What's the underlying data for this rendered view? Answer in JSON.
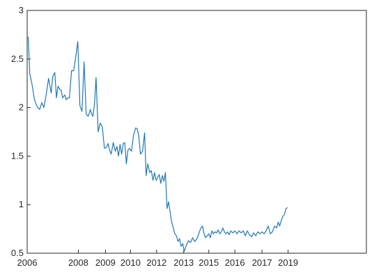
{
  "chart_data": {
    "type": "line",
    "title": "",
    "xlabel": "",
    "ylabel": "",
    "xlim": [
      2006,
      2019
    ],
    "ylim": [
      0.5,
      3
    ],
    "grid": false,
    "legend": "none",
    "line_color": "#1f77b4",
    "x_ticks": [
      {
        "value": 2006.0,
        "label": "2006"
      },
      {
        "value": 2007.96,
        "label": "2008"
      },
      {
        "value": 2009.0,
        "label": "2009"
      },
      {
        "value": 2009.96,
        "label": "2010"
      },
      {
        "value": 2010.96,
        "label": "2012"
      },
      {
        "value": 2012.0,
        "label": "2013"
      },
      {
        "value": 2012.96,
        "label": "2015"
      },
      {
        "value": 2013.96,
        "label": "2016"
      },
      {
        "value": 2015.0,
        "label": "2017"
      },
      {
        "value": 2016.0,
        "label": "2019"
      }
    ],
    "y_ticks": [
      {
        "value": 0.5,
        "label": "0.5"
      },
      {
        "value": 1,
        "label": "1"
      },
      {
        "value": 1.5,
        "label": "1.5"
      },
      {
        "value": 2,
        "label": "2"
      },
      {
        "value": 2.5,
        "label": "2.5"
      },
      {
        "value": 3,
        "label": "3"
      }
    ],
    "series": [
      {
        "x": [
          2006.04,
          2006.1,
          2006.18,
          2006.28,
          2006.38,
          2006.48,
          2006.56,
          2006.64,
          2006.72,
          2006.82,
          2006.92,
          2006.98,
          2007.06,
          2007.12,
          2007.18,
          2007.24,
          2007.3,
          2007.36,
          2007.44,
          2007.5,
          2007.56,
          2007.62,
          2007.7,
          2007.78,
          2007.86,
          2007.94,
          2008.02,
          2008.1,
          2008.18,
          2008.26,
          2008.34,
          2008.42,
          2008.48,
          2008.52,
          2008.58,
          2008.64,
          2008.72,
          2008.8,
          2008.88,
          2008.96,
          2009.04,
          2009.1,
          2009.16,
          2009.22,
          2009.3,
          2009.38,
          2009.44,
          2009.5,
          2009.56,
          2009.62,
          2009.68,
          2009.74,
          2009.8,
          2009.86,
          2009.92,
          2010.0,
          2010.08,
          2010.16,
          2010.22,
          2010.28,
          2010.34,
          2010.42,
          2010.5,
          2010.56,
          2010.62,
          2010.7,
          2010.76,
          2010.82,
          2010.88,
          2010.94,
          2011.0,
          2011.06,
          2011.12,
          2011.18,
          2011.24,
          2011.3,
          2011.36,
          2011.42,
          2011.48,
          2011.54,
          2011.6,
          2011.66,
          2011.72,
          2011.78,
          2011.84,
          2011.9,
          2011.96,
          2012.02,
          2012.1,
          2012.18,
          2012.26,
          2012.34,
          2012.42,
          2012.48,
          2012.54,
          2012.6,
          2012.66,
          2012.72,
          2012.78,
          2012.84,
          2012.9,
          2012.96,
          2013.02,
          2013.08,
          2013.14,
          2013.2,
          2013.26,
          2013.32,
          2013.38,
          2013.44,
          2013.5,
          2013.56,
          2013.62,
          2013.68,
          2013.74,
          2013.8,
          2013.88,
          2013.96,
          2014.04,
          2014.12,
          2014.2,
          2014.28,
          2014.36,
          2014.44,
          2014.52,
          2014.6,
          2014.68,
          2014.76,
          2014.84,
          2014.92,
          2015.0,
          2015.08,
          2015.16,
          2015.24,
          2015.32,
          2015.4,
          2015.48,
          2015.56,
          2015.62,
          2015.68,
          2015.74,
          2015.8,
          2015.86,
          2015.92,
          2015.98
        ],
        "y": [
          2.73,
          2.35,
          2.25,
          2.08,
          2.01,
          1.98,
          2.05,
          2.0,
          2.12,
          2.3,
          2.15,
          2.32,
          2.36,
          2.1,
          2.22,
          2.19,
          2.18,
          2.1,
          2.13,
          2.08,
          2.1,
          2.1,
          2.38,
          2.38,
          2.52,
          2.68,
          2.02,
          1.96,
          2.47,
          1.93,
          1.91,
          1.98,
          1.93,
          1.91,
          2.04,
          2.31,
          1.75,
          1.84,
          1.8,
          1.58,
          1.59,
          1.63,
          1.56,
          1.52,
          1.64,
          1.55,
          1.6,
          1.5,
          1.62,
          1.52,
          1.63,
          1.64,
          1.42,
          1.56,
          1.58,
          1.55,
          1.72,
          1.79,
          1.78,
          1.7,
          1.52,
          1.55,
          1.74,
          1.3,
          1.42,
          1.33,
          1.35,
          1.25,
          1.33,
          1.25,
          1.28,
          1.31,
          1.22,
          1.3,
          1.24,
          1.33,
          0.96,
          1.03,
          0.92,
          0.82,
          0.76,
          0.7,
          0.68,
          0.62,
          0.65,
          0.57,
          0.6,
          0.52,
          0.58,
          0.63,
          0.61,
          0.66,
          0.62,
          0.64,
          0.67,
          0.72,
          0.76,
          0.78,
          0.7,
          0.66,
          0.68,
          0.7,
          0.66,
          0.73,
          0.7,
          0.72,
          0.71,
          0.74,
          0.7,
          0.72,
          0.76,
          0.72,
          0.7,
          0.72,
          0.69,
          0.73,
          0.71,
          0.73,
          0.7,
          0.73,
          0.71,
          0.73,
          0.68,
          0.73,
          0.69,
          0.67,
          0.71,
          0.68,
          0.72,
          0.7,
          0.72,
          0.7,
          0.73,
          0.78,
          0.7,
          0.72,
          0.78,
          0.76,
          0.82,
          0.78,
          0.84,
          0.88,
          0.9,
          0.96,
          0.97
        ]
      }
    ]
  }
}
